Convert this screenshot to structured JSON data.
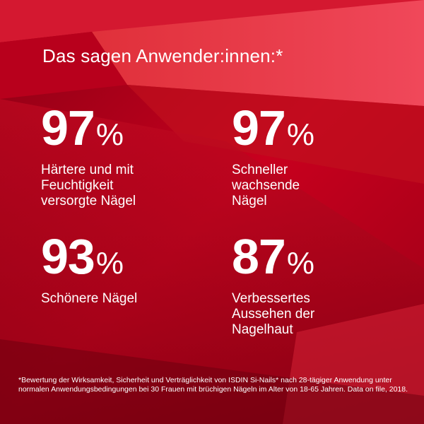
{
  "title": "Das sagen Anwender:innen:*",
  "stats": [
    {
      "value": "97",
      "unit": "%",
      "label": "Härtere und mit\nFeuchtigkeit\nversorgte Nägel"
    },
    {
      "value": "97",
      "unit": "%",
      "label": "Schneller\nwachsende\nNägel"
    },
    {
      "value": "93",
      "unit": "%",
      "label": "Schönere Nägel"
    },
    {
      "value": "87",
      "unit": "%",
      "label": "Verbessertes\nAussehen der\nNagelhaut"
    }
  ],
  "footnote": "*Bewertung der Wirksamkeit, Sicherheit und Verträglichkeit von ISDIN Si-Nails* nach 28-tägiger Anwendung unter normalen Anwendungsbedingungen bei 30 Frauen mit brüchigen Nägeln im Alter von 18-65 Jahren. Data on file, 2018.",
  "colors": {
    "background": "#b0001a",
    "text": "#ffffff"
  }
}
